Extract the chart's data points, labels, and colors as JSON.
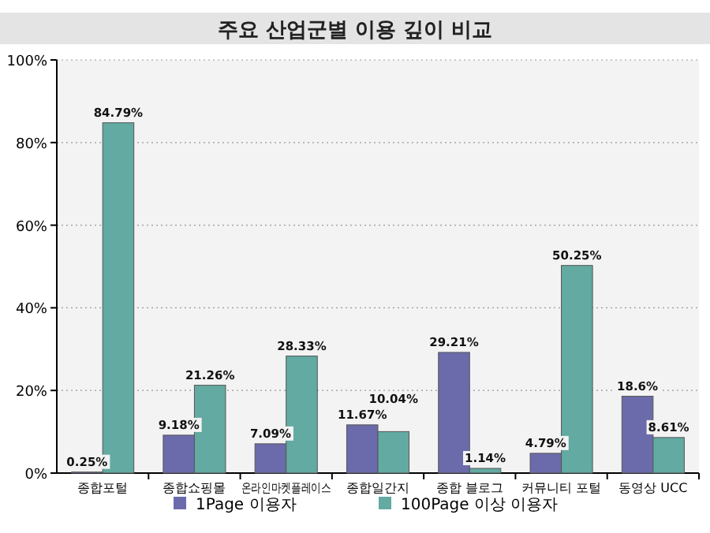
{
  "chart_data": {
    "type": "bar",
    "title": "주요 산업군별 이용 깊이 비교",
    "categories": [
      "종합포털",
      "종합쇼핑몰",
      "온라인마켓플레이스",
      "종합일간지",
      "종합 블로그",
      "커뮤니티 포털",
      "동영상 UCC"
    ],
    "series": [
      {
        "name": "1Page 이용자",
        "color": "#6b6bab",
        "values": [
          0.25,
          9.18,
          7.09,
          11.67,
          29.21,
          4.79,
          18.6
        ],
        "value_labels": [
          "0.25%",
          "9.18%",
          "7.09%",
          "11.67%",
          "29.21%",
          "4.79%",
          "18.6%"
        ]
      },
      {
        "name": "100Page 이상 이용자",
        "color": "#62aaa2",
        "values": [
          84.79,
          21.26,
          28.33,
          10.04,
          1.14,
          50.25,
          8.61
        ],
        "value_labels": [
          "84.79%",
          "21.26%",
          "28.33%",
          "10.04%",
          "1.14%",
          "50.25%",
          "8.61%"
        ]
      }
    ],
    "ylim": [
      0,
      100
    ],
    "yticks": [
      {
        "value": 0,
        "label": "0%"
      },
      {
        "value": 20,
        "label": "20%"
      },
      {
        "value": 40,
        "label": "40%"
      },
      {
        "value": 60,
        "label": "60%"
      },
      {
        "value": 80,
        "label": "80%"
      },
      {
        "value": 100,
        "label": "100%"
      }
    ],
    "grid": "y",
    "legend": "bottom"
  }
}
